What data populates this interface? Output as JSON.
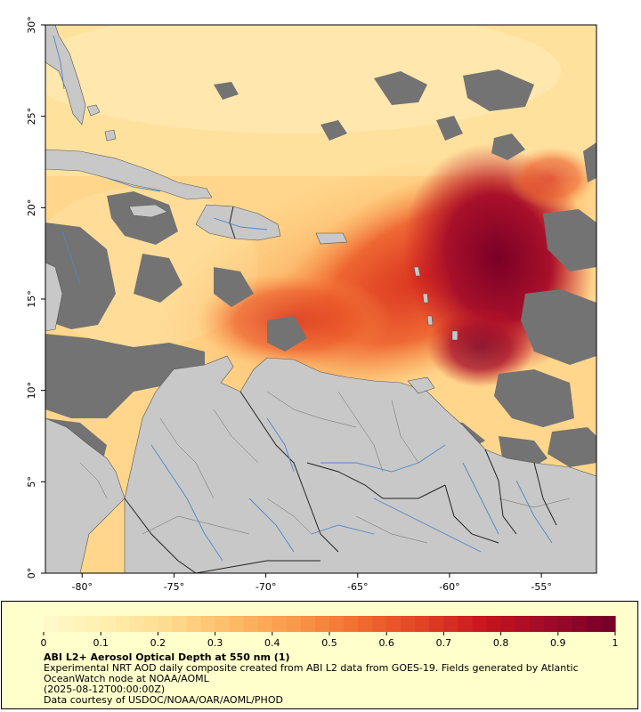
{
  "map": {
    "lon_ticks": [
      "-80°",
      "-75°",
      "-70°",
      "-65°",
      "-60°",
      "-55°"
    ],
    "lat_ticks": [
      "0°",
      "5°",
      "10°",
      "15°",
      "20°",
      "25°",
      "30°"
    ],
    "lon_range": [
      -82,
      -52
    ],
    "lat_range": [
      0,
      30
    ],
    "colors": {
      "land": "#c8c8c8",
      "no_data": "#737373",
      "rivers": "#4f86c6",
      "borders": "#333333"
    }
  },
  "colorbar": {
    "ticks": [
      "0",
      "0.1",
      "0.2",
      "0.3",
      "0.4",
      "0.5",
      "0.6",
      "0.7",
      "0.8",
      "0.9",
      "1"
    ],
    "range": [
      0,
      1
    ],
    "colors": [
      "#fff8c8",
      "#ffedaa",
      "#fed98a",
      "#fdb863",
      "#f99648",
      "#f16b2e",
      "#e24225",
      "#c8141e",
      "#a00a28",
      "#780028"
    ]
  },
  "caption": {
    "title": "ABI L2+ Aerosol Optical Depth at 550 nm (1)",
    "line1": "Experimental NRT AOD daily composite created from ABI L2 data from GOES-19. Fields generated by Atlantic",
    "line2": "OceanWatch node at NOAA/AOML",
    "line3": "(2025-08-12T00:00:00Z)",
    "line4": "Data courtesy of USDOC/NOAA/OAR/AOML/PHOD"
  }
}
